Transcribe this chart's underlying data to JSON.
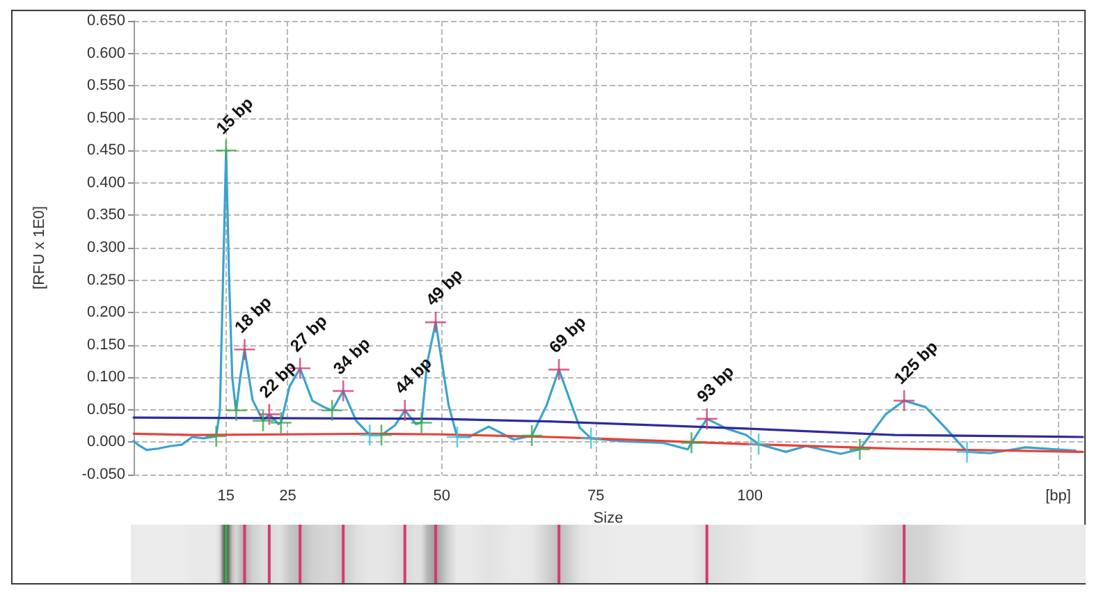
{
  "chart_data": {
    "type": "line",
    "xlabel": "Size",
    "ylabel": "[RFU x 1E0]",
    "xlim": [
      0,
      154
    ],
    "xticks": [
      15,
      25,
      50,
      75,
      100,
      {
        "value": 150,
        "label": "[bp]"
      }
    ],
    "ylim": [
      -0.05,
      0.65
    ],
    "yticks": [
      {
        "value": -0.05,
        "label": "-0.050"
      },
      {
        "value": 0,
        "label": "0.000"
      },
      {
        "value": 0.05,
        "label": "0.050"
      },
      {
        "value": 0.1,
        "label": "0.100"
      },
      {
        "value": 0.15,
        "label": "0.150"
      },
      {
        "value": 0.2,
        "label": "0.200"
      },
      {
        "value": 0.25,
        "label": "0.250"
      },
      {
        "value": 0.3,
        "label": "0.300"
      },
      {
        "value": 0.35,
        "label": "0.350"
      },
      {
        "value": 0.4,
        "label": "0.400"
      },
      {
        "value": 0.45,
        "label": "0.450"
      },
      {
        "value": 0.5,
        "label": "0.500"
      },
      {
        "value": 0.55,
        "label": "0.550"
      },
      {
        "value": 0.6,
        "label": "0.600"
      },
      {
        "value": 0.65,
        "label": "0.650"
      }
    ],
    "grid": true,
    "annotations": [
      {
        "text": "15 bp",
        "x": 15,
        "y": 0.45
      },
      {
        "text": "18 bp",
        "x": 18,
        "y": 0.143
      },
      {
        "text": "22 bp",
        "x": 22,
        "y": 0.043
      },
      {
        "text": "27 bp",
        "x": 27,
        "y": 0.114
      },
      {
        "text": "34 bp",
        "x": 34,
        "y": 0.079
      },
      {
        "text": "44 bp",
        "x": 44,
        "y": 0.049
      },
      {
        "text": "49 bp",
        "x": 49,
        "y": 0.185
      },
      {
        "text": "69 bp",
        "x": 69,
        "y": 0.112
      },
      {
        "text": "93 bp",
        "x": 93,
        "y": 0.036
      },
      {
        "text": "125 bp",
        "x": 125,
        "y": 0.064
      }
    ],
    "series": [
      {
        "color": "#3aa3cf",
        "x": [
          0,
          0.7,
          2.1,
          3.9,
          6.0,
          7.8,
          9.5,
          11.3,
          13.4,
          14.0,
          14.5,
          15,
          15.5,
          16.0,
          16.5,
          16.65,
          17.3,
          18,
          19.3,
          21.0,
          22,
          23.5,
          23.9,
          25.3,
          27,
          29.0,
          30.9,
          32.2,
          34,
          36.1,
          38.3,
          40.2,
          42.4,
          44,
          45.8,
          46.7,
          47.6,
          49,
          51.1,
          52.5,
          54.4,
          57.6,
          61.7,
          64.6,
          67.0,
          69,
          72.4,
          74.2,
          79.6,
          85.9,
          89.9,
          90.5,
          93,
          96.2,
          99.4,
          101.4,
          105.8,
          109.1,
          114.7,
          117.8,
          122.0,
          125,
          128.5,
          131.7,
          135.2,
          139.0,
          144.7,
          152.8
        ],
        "values": [
          0.002,
          -0.004,
          -0.012,
          -0.01,
          -0.006,
          -0.004,
          0.008,
          0.006,
          0.009,
          0.05,
          0.25,
          0.45,
          0.25,
          0.1,
          0.057,
          0.049,
          0.1,
          0.143,
          0.065,
          0.033,
          0.043,
          0.028,
          0.03,
          0.086,
          0.114,
          0.064,
          0.054,
          0.049,
          0.079,
          0.033,
          0.011,
          0.011,
          0.026,
          0.049,
          0.028,
          0.03,
          0.121,
          0.185,
          0.057,
          0.008,
          0.008,
          0.024,
          0.004,
          0.01,
          0.057,
          0.112,
          0.022,
          0.006,
          0.001,
          -0.001,
          -0.011,
          -0.001,
          0.036,
          0.021,
          0.011,
          -0.003,
          -0.015,
          -0.006,
          -0.018,
          -0.011,
          0.043,
          0.064,
          0.054,
          0.022,
          -0.015,
          -0.017,
          -0.008,
          -0.013
        ]
      },
      {
        "color": "#2e2a9c",
        "x": [
          0,
          49,
          67.5,
          99.3,
          123.5,
          154
        ],
        "values": [
          0.038,
          0.036,
          0.032,
          0.021,
          0.011,
          0.008
        ]
      },
      {
        "color": "#e8403a",
        "x": [
          0,
          10,
          39,
          50,
          67.5,
          74.2,
          99.3,
          123.5,
          154
        ],
        "values": [
          0.013,
          0.011,
          0.013,
          0.012,
          0.008,
          0.006,
          -0.003,
          -0.01,
          -0.015
        ]
      },
      {
        "type": "scatter",
        "marker": "cross",
        "color": "#d63a6e",
        "colors": [
          "#3da84a",
          "#d63a6e",
          "#d63a6e",
          "#d63a6e",
          "#d63a6e",
          "#d63a6e",
          "#d63a6e",
          "#d63a6e",
          "#d63a6e",
          "#d63a6e"
        ],
        "x": [
          15,
          18,
          22,
          27,
          34,
          44,
          49,
          69,
          93,
          125
        ],
        "values": [
          0.45,
          0.143,
          0.043,
          0.114,
          0.079,
          0.049,
          0.185,
          0.112,
          0.036,
          0.064
        ]
      },
      {
        "type": "scatter",
        "marker": "cross",
        "color": "#3da84a",
        "x": [
          13.4,
          16.65,
          21.0,
          23.9,
          32.2,
          40.2,
          46.7,
          64.6,
          90.5,
          117.8
        ],
        "values": [
          0.009,
          0.049,
          0.033,
          0.03,
          0.049,
          0.011,
          0.03,
          0.01,
          -0.001,
          -0.011
        ]
      },
      {
        "type": "scatter",
        "marker": "cross",
        "color": "#33c6e0",
        "x": [
          38.3,
          52.5,
          74.2,
          101.4,
          135.2
        ],
        "values": [
          0.011,
          0.008,
          0.006,
          -0.003,
          -0.015
        ]
      }
    ]
  }
}
